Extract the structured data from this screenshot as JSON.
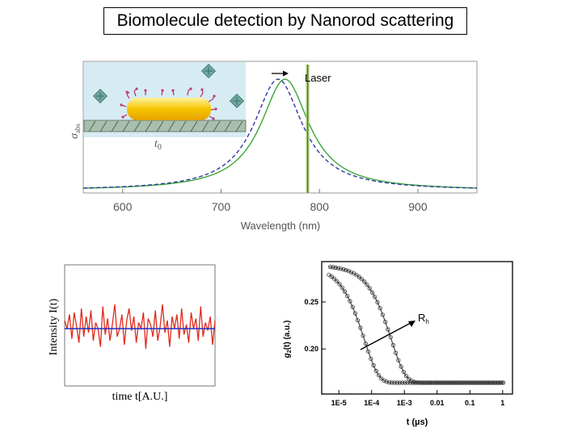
{
  "slide": {
    "title": "Biomolecule detection by Nanorod scattering"
  },
  "chart_data": [
    {
      "type": "line",
      "title": "",
      "xlabel": "Wavelength (nm)",
      "ylabel_main": "σ",
      "ylabel_sub": "abs",
      "xlim": [
        560,
        960
      ],
      "x_ticks": [
        "600",
        "700",
        "800",
        "900"
      ],
      "x_tick_values": [
        600,
        700,
        800,
        900
      ],
      "annotations": {
        "laser": "Laser",
        "time_label": "t",
        "time_sub": "0"
      },
      "laser_wavelength": 788,
      "series": [
        {
          "style": "solid",
          "color": "#3aa63a",
          "peak": 765,
          "gamma": 30
        },
        {
          "style": "dashed",
          "color": "#2c3a9e",
          "peak": 758,
          "gamma": 30
        }
      ]
    },
    {
      "type": "line",
      "title": "",
      "xlabel": "time t[A.U.]",
      "ylabel": "Intensity I(t)",
      "mean_color": "#1a2fd0",
      "signal_color": "#e02a1a",
      "series": [
        {
          "values": [
            0.2,
            0.0,
            0.35,
            -0.25,
            0.4,
            0.05,
            -0.35,
            0.5,
            -0.2,
            0.3,
            -0.1,
            0.45,
            -0.3,
            0.15,
            0.0,
            -0.45,
            0.55,
            -0.15,
            0.25,
            -0.3,
            0.1,
            0.6,
            -0.2,
            0.0,
            0.35,
            -0.4,
            0.2,
            0.5,
            -0.05,
            0.3,
            -0.35,
            0.15,
            0.0,
            0.4,
            -0.5,
            0.25,
            0.1,
            -0.2,
            0.45,
            -0.3,
            0.05,
            0.6,
            -0.1,
            0.2,
            -0.45,
            0.3,
            0.0,
            0.35,
            -0.25,
            0.5,
            -0.15,
            0.1,
            -0.35,
            0.4,
            0.0,
            0.25,
            -0.3,
            0.55,
            -0.2,
            0.15,
            -0.05,
            0.3,
            -0.4,
            0.2
          ]
        }
      ]
    },
    {
      "type": "scatter",
      "title": "",
      "xlabel": "t (µs)",
      "ylabel_main": "g",
      "ylabel_sub": "2",
      "ylabel_rest": "(t) (a.u.)",
      "x_scale": "log",
      "xlim": [
        3e-06,
        2
      ],
      "ylim": [
        0.152,
        0.293
      ],
      "x_ticks": [
        "1E-5",
        "1E-4",
        "1E-3",
        "0.01",
        "0.1",
        "1"
      ],
      "x_tick_values": [
        1e-05,
        0.0001,
        0.001,
        0.01,
        0.1,
        1
      ],
      "y_ticks": [
        "0.20",
        "0.25"
      ],
      "y_tick_values": [
        0.2,
        0.25
      ],
      "arrow_label_main": "R",
      "arrow_label_sub": "h",
      "series": [
        {
          "tau": 0.00012,
          "baseline": 0.164,
          "amplitude": 0.125
        },
        {
          "tau": 0.0008,
          "baseline": 0.164,
          "amplitude": 0.125
        }
      ]
    }
  ]
}
